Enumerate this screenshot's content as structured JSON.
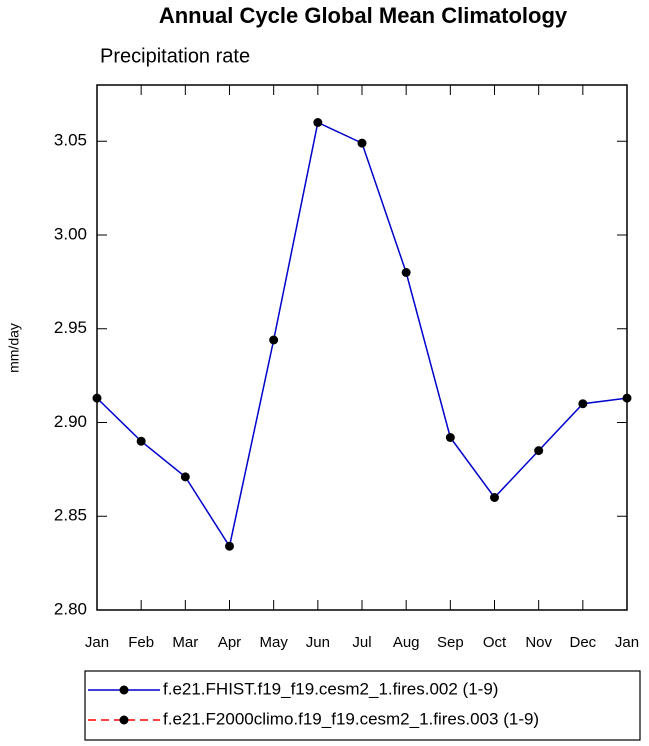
{
  "chart_data": {
    "type": "line",
    "title": "Annual Cycle Global Mean Climatology",
    "subtitle": "Precipitation rate",
    "y_label": "mm/day",
    "categories": [
      "Jan",
      "Feb",
      "Mar",
      "Apr",
      "May",
      "Jun",
      "Jul",
      "Aug",
      "Sep",
      "Oct",
      "Nov",
      "Dec",
      "Jan"
    ],
    "series": [
      {
        "name": "f.e21.FHIST.f19_f19.cesm2_1.fires.002 (1-9)",
        "color": "#0000cc",
        "dash": false,
        "values": [
          2.913,
          2.89,
          2.871,
          2.834,
          2.944,
          3.06,
          3.049,
          2.98,
          2.892,
          2.86,
          2.885,
          2.91,
          2.913
        ]
      },
      {
        "name": "f.e21.F2000climo.f19_f19.cesm2_1.fires.003 (1-9)",
        "color": "#ff0000",
        "dash": true,
        "values": [
          null,
          null,
          null,
          null,
          null,
          null,
          null,
          null,
          null,
          null,
          null,
          null,
          null
        ]
      }
    ],
    "ylim": [
      2.8,
      3.08
    ],
    "yticks": [
      {
        "value": 2.8,
        "label": "2.80"
      },
      {
        "value": 2.85,
        "label": "2.85"
      },
      {
        "value": 2.9,
        "label": "2.90"
      },
      {
        "value": 2.95,
        "label": "2.95"
      },
      {
        "value": 3.0,
        "label": "3.00"
      },
      {
        "value": 3.05,
        "label": "3.05"
      }
    ]
  }
}
